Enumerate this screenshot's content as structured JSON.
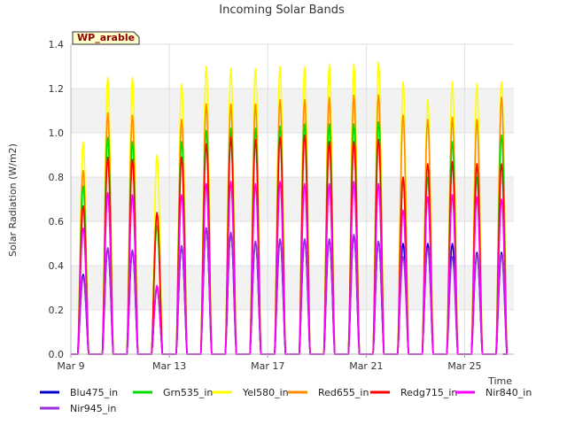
{
  "chart_data": {
    "type": "line",
    "title": "Incoming Solar Bands",
    "xlabel": "Time",
    "ylabel": "Solar Radiation (W/m2)",
    "station_label": "WP_arable",
    "ylim": [
      0,
      1.4
    ],
    "yticks": [
      "0.0",
      "0.2",
      "0.4",
      "0.6",
      "0.8",
      "1.0",
      "1.2",
      "1.4"
    ],
    "xlim": [
      "2024-03-09",
      "2024-03-27"
    ],
    "xticks": [
      "Mar 9",
      "Mar 13",
      "Mar 17",
      "Mar 21",
      "Mar 25"
    ],
    "x_tick_days": [
      0,
      4,
      8,
      12,
      16
    ],
    "grid": true,
    "legend_position": "bottom",
    "days": [
      "Mar 9",
      "Mar 10",
      "Mar 11",
      "Mar 12",
      "Mar 13",
      "Mar 14",
      "Mar 15",
      "Mar 16",
      "Mar 17",
      "Mar 18",
      "Mar 19",
      "Mar 20",
      "Mar 21",
      "Mar 22",
      "Mar 23",
      "Mar 24",
      "Mar 25",
      "Mar 26"
    ],
    "series": [
      {
        "name": "Blu475_in",
        "color": "#0000cd",
        "peaks": [
          0.36,
          0.48,
          0.47,
          0.3,
          0.49,
          0.57,
          0.55,
          0.51,
          0.52,
          0.52,
          0.52,
          0.54,
          0.51,
          0.5,
          0.5,
          0.5,
          0.46,
          0.46
        ]
      },
      {
        "name": "Grn535_in",
        "color": "#00dd00",
        "peaks": [
          0.76,
          0.98,
          0.96,
          0.58,
          0.96,
          1.01,
          1.02,
          1.02,
          1.03,
          1.04,
          1.04,
          1.04,
          1.05,
          0.8,
          0.8,
          0.96,
          0.8,
          0.99
        ]
      },
      {
        "name": "Yel580_in",
        "color": "#ffff00",
        "peaks": [
          0.96,
          1.25,
          1.25,
          0.9,
          1.22,
          1.3,
          1.29,
          1.29,
          1.3,
          1.3,
          1.31,
          1.31,
          1.32,
          1.23,
          1.15,
          1.23,
          1.22,
          1.23
        ]
      },
      {
        "name": "Red655_in",
        "color": "#ff8c00",
        "peaks": [
          0.83,
          1.09,
          1.08,
          0.63,
          1.06,
          1.13,
          1.13,
          1.13,
          1.15,
          1.15,
          1.16,
          1.17,
          1.17,
          1.08,
          1.06,
          1.07,
          1.06,
          1.16
        ]
      },
      {
        "name": "Redg715_in",
        "color": "#ff0000",
        "peaks": [
          0.67,
          0.89,
          0.88,
          0.64,
          0.89,
          0.95,
          0.98,
          0.97,
          0.98,
          0.99,
          0.96,
          0.96,
          0.97,
          0.8,
          0.86,
          0.87,
          0.86,
          0.86
        ]
      },
      {
        "name": "Nir840_in",
        "color": "#ff00ff",
        "peaks": [
          0.57,
          0.73,
          0.72,
          0.31,
          0.72,
          0.77,
          0.78,
          0.77,
          0.78,
          0.77,
          0.77,
          0.78,
          0.77,
          0.65,
          0.71,
          0.72,
          0.71,
          0.7
        ]
      },
      {
        "name": "Nir945_in",
        "color": "#9b30d9",
        "peaks": [
          0.35,
          0.48,
          0.47,
          0.3,
          0.49,
          0.57,
          0.55,
          0.51,
          0.52,
          0.52,
          0.52,
          0.54,
          0.51,
          0.44,
          0.48,
          0.44,
          0.45,
          0.45
        ]
      }
    ]
  }
}
